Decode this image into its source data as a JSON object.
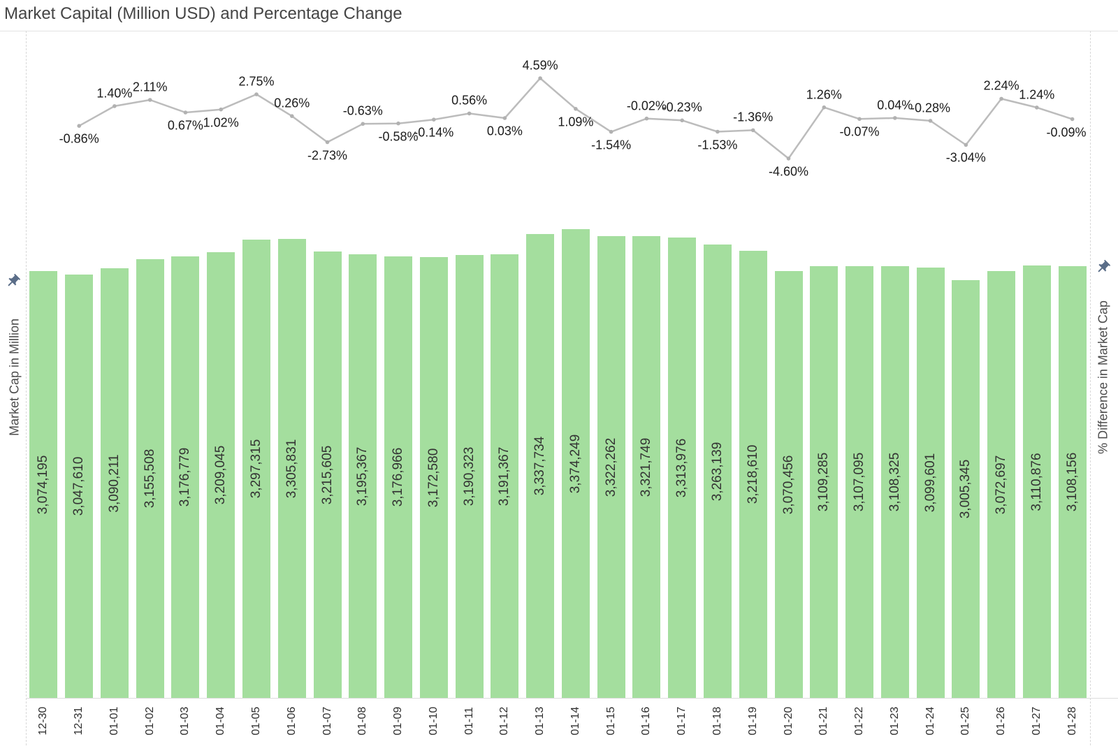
{
  "chart_data": {
    "type": "bar+line",
    "title": "Market Capital (Million USD) and Percentage Change",
    "categories": [
      "12-30",
      "12-31",
      "01-01",
      "01-02",
      "01-03",
      "01-04",
      "01-05",
      "01-06",
      "01-07",
      "01-08",
      "01-09",
      "01-10",
      "01-11",
      "01-12",
      "01-13",
      "01-14",
      "01-15",
      "01-16",
      "01-17",
      "01-18",
      "01-19",
      "01-20",
      "01-21",
      "01-22",
      "01-23",
      "01-24",
      "01-25",
      "01-26",
      "01-27",
      "01-28"
    ],
    "bar_series": {
      "name": "Market Cap in Million",
      "values": [
        3074195,
        3047610,
        3090211,
        3155508,
        3176779,
        3209045,
        3297315,
        3305831,
        3215605,
        3195367,
        3176966,
        3172580,
        3190323,
        3191367,
        3337734,
        3374249,
        3322262,
        3321749,
        3313976,
        3263139,
        3218610,
        3070456,
        3109285,
        3107095,
        3108325,
        3099601,
        3005345,
        3072697,
        3110876,
        3108156
      ]
    },
    "line_series": {
      "name": "% Difference in Market Cap",
      "values": [
        null,
        -0.86,
        1.4,
        2.11,
        0.67,
        1.02,
        2.75,
        0.26,
        -2.73,
        -0.63,
        -0.58,
        -0.14,
        0.56,
        0.03,
        4.59,
        1.09,
        -1.54,
        -0.02,
        -0.23,
        -1.53,
        -1.36,
        -4.6,
        1.26,
        -0.07,
        0.04,
        -0.28,
        -3.04,
        2.24,
        1.24,
        -0.09
      ],
      "label_positions": [
        null,
        "below",
        "above",
        "above",
        "below",
        "below",
        "above",
        "above",
        "below",
        "above",
        "below",
        "below",
        "above",
        "below",
        "above",
        "below",
        "below",
        "above",
        "above",
        "below",
        "above",
        "below",
        "above",
        "below",
        "above",
        "above",
        "below",
        "above",
        "above",
        "below"
      ],
      "label_format": "0.00%"
    },
    "layout_hints": {
      "grid": "off",
      "legend": "none",
      "bar_label_rotation": -90,
      "tick_rotation": -90,
      "bar_baseline": 0
    }
  },
  "icons": {
    "left_axis_pin": "pushpin-icon",
    "right_axis_pin": "pushpin-icon"
  },
  "colors": {
    "bar": "#a4de9e",
    "bar_label": "#333333",
    "line": "#bcbcbc",
    "marker": "#b1b1b1",
    "pct_label": "#1c1c1c",
    "tick_label": "#2f2f2f",
    "axis_title": "#4c4c4c",
    "title": "#454545",
    "pin": "#5a6d88",
    "dashed_axis": "#d8d8d8",
    "baseline": "#dcdcdc",
    "title_rule": "#e3e3e3"
  }
}
